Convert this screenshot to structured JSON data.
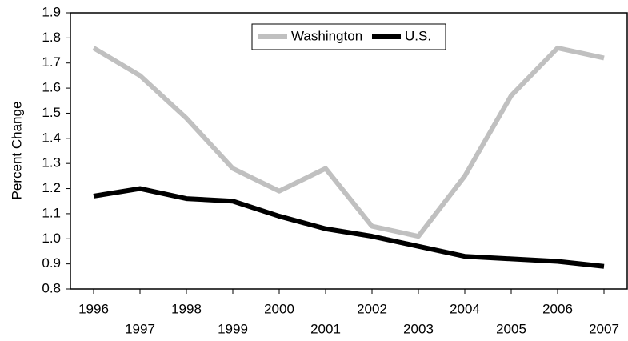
{
  "chart_data": {
    "type": "line",
    "y_label": "Percent Change",
    "categories": [
      "1996",
      "1997",
      "1998",
      "1999",
      "2000",
      "2001",
      "2002",
      "2003",
      "2004",
      "2005",
      "2006",
      "2007"
    ],
    "series": [
      {
        "name": "Washington",
        "color": "#c0c0c0",
        "values": [
          1.76,
          1.65,
          1.48,
          1.28,
          1.19,
          1.28,
          1.05,
          1.01,
          1.25,
          1.57,
          1.76,
          1.72
        ]
      },
      {
        "name": "U.S.",
        "color": "#000000",
        "values": [
          1.17,
          1.2,
          1.16,
          1.15,
          1.09,
          1.04,
          1.01,
          0.97,
          0.93,
          0.92,
          0.91,
          0.89
        ]
      }
    ],
    "ylim": [
      0.8,
      1.9
    ],
    "yticks": [
      0.8,
      0.9,
      {
        "value": 1,
        "label": "1.0"
      },
      1.1,
      1.2,
      1.3,
      1.4,
      1.5,
      1.6,
      1.7,
      1.8,
      1.9
    ],
    "grid": false,
    "legend": "upper center"
  }
}
